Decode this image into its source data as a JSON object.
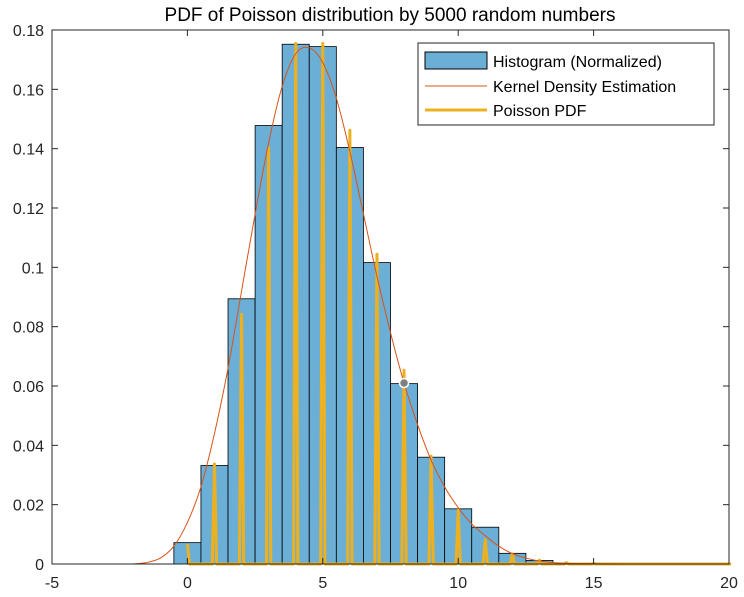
{
  "chart_data": {
    "type": "bar",
    "title": "PDF of Poisson distribution by 5000 random numbers",
    "xlabel": "",
    "ylabel": "",
    "xlim": [
      -5,
      20
    ],
    "ylim": [
      0,
      0.18
    ],
    "xticks": [
      -5,
      0,
      5,
      10,
      15,
      20
    ],
    "xtick_labels": [
      "-5",
      "0",
      "5",
      "10",
      "15",
      "20"
    ],
    "yticks": [
      0,
      0.02,
      0.04,
      0.06,
      0.08,
      0.1,
      0.12,
      0.14,
      0.16,
      0.18
    ],
    "ytick_labels": [
      "0",
      "0.02",
      "0.04",
      "0.06",
      "0.08",
      "0.1",
      "0.12",
      "0.14",
      "0.16",
      "0.18"
    ],
    "legend_position": "top-right",
    "legend": [
      "Histogram (Normalized)",
      "Kernel Density Estimation",
      "Poisson PDF"
    ],
    "histogram": {
      "name": "Histogram (Normalized)",
      "bin_width": 1,
      "bin_centers": [
        0,
        1,
        2,
        3,
        4,
        5,
        6,
        7,
        8,
        9,
        10,
        11,
        12,
        13,
        14,
        15
      ],
      "values": [
        0.0072,
        0.0332,
        0.0894,
        0.1478,
        0.1752,
        0.1744,
        0.1404,
        0.1016,
        0.0608,
        0.036,
        0.0186,
        0.0124,
        0.0036,
        0.0012,
        0.0002,
        0.0002
      ],
      "color": "#6baed6"
    },
    "kde": {
      "name": "Kernel Density Estimation",
      "x": [
        -2.0,
        -1.5,
        -1.0,
        -0.5,
        0.0,
        0.5,
        1.0,
        1.5,
        2.0,
        2.5,
        3.0,
        3.5,
        4.0,
        4.5,
        5.0,
        5.5,
        6.0,
        6.5,
        7.0,
        7.5,
        8.0,
        8.5,
        9.0,
        9.5,
        10.0,
        10.5,
        11.0,
        11.5,
        12.0,
        12.5,
        13.0,
        13.5,
        14.0,
        15.0,
        16.0,
        17.0,
        18.0,
        19.0,
        20.0
      ],
      "y": [
        0.0,
        0.0005,
        0.002,
        0.006,
        0.014,
        0.026,
        0.044,
        0.066,
        0.092,
        0.118,
        0.142,
        0.161,
        0.172,
        0.174,
        0.169,
        0.157,
        0.139,
        0.118,
        0.097,
        0.078,
        0.061,
        0.047,
        0.035,
        0.026,
        0.019,
        0.0135,
        0.0095,
        0.006,
        0.0035,
        0.002,
        0.001,
        0.0005,
        0.0002,
        0.0001,
        0.0,
        0.0,
        0.0,
        0.0,
        0.0
      ],
      "color": "#d95319"
    },
    "poisson_pdf": {
      "name": "Poisson PDF",
      "k": [
        0,
        1,
        2,
        3,
        4,
        5,
        6,
        7,
        8,
        9,
        10,
        11,
        12,
        13,
        14,
        15,
        16,
        17,
        18,
        19,
        20
      ],
      "values": [
        0.0067,
        0.0337,
        0.0842,
        0.1404,
        0.1755,
        0.1755,
        0.1462,
        0.1044,
        0.0653,
        0.0363,
        0.0181,
        0.0082,
        0.0034,
        0.0013,
        0.0005,
        0.0002,
        0.0,
        0.0,
        0.0,
        0.0,
        0.0
      ],
      "color": "#edb120"
    },
    "highlight_point": {
      "x": 8,
      "y": 0.061
    }
  }
}
